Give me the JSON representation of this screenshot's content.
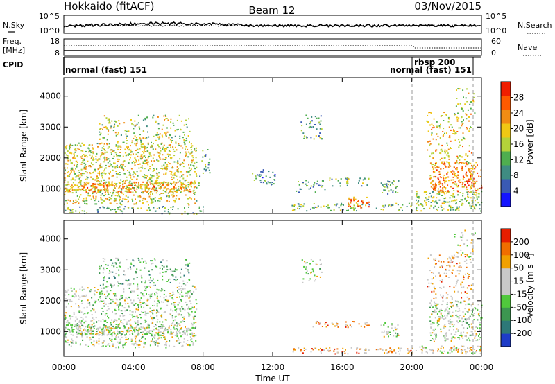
{
  "header": {
    "station": "Hokkaido (fitACF)",
    "beam": "Beam 12",
    "date": "03/Nov/2015"
  },
  "status_panels": {
    "nsky_label": "N.Sky",
    "nsky_ticks": [
      "10^5",
      "10^0"
    ],
    "nsearch_label": "N.Search",
    "nsearch_ticks": [
      "10^5",
      "10^0"
    ],
    "freq_label": "Freq.",
    "freq_unit": "[MHz]",
    "freq_ticks": [
      "18",
      "8"
    ],
    "nave_label": "Nave",
    "nave_ticks": [
      "60",
      "0"
    ],
    "cpid_label": "CPID",
    "cpid_segments": [
      {
        "label": "normal (fast) 151",
        "start_h": 0,
        "end_h": 20.2
      },
      {
        "label": "rbsp 200",
        "start_h": 20.2,
        "end_h": 20.6
      },
      {
        "label": "normal (fast) 151",
        "start_h": 20.6,
        "end_h": 24
      }
    ]
  },
  "colors": {
    "power": [
      "#1414ff",
      "#3a5ab4",
      "#3f8c82",
      "#4fae4f",
      "#b4d23a",
      "#f0c814",
      "#f08c14",
      "#ff5a00",
      "#f01e00"
    ],
    "velocity": [
      "#1e3cc8",
      "#2d7878",
      "#3c9650",
      "#50c83c",
      "#c8c8c8",
      "#c8c8c8",
      "#f0a000",
      "#f06e00",
      "#e61e00"
    ]
  },
  "chart_data": [
    {
      "type": "heatmap",
      "panel": "power",
      "xlabel": "",
      "ylabel": "Slant Range [km]",
      "xlim": [
        0,
        24
      ],
      "ylim": [
        200,
        4600
      ],
      "x_ticks": [
        "00:00",
        "04:00",
        "08:00",
        "12:00",
        "16:00",
        "20:00",
        "00:00"
      ],
      "y_ticks": [
        1000,
        2000,
        3000,
        4000
      ],
      "colorbar_label": "Power [dB]",
      "colorbar_ticks": [
        "28",
        "24",
        "20",
        "16",
        "12",
        "8",
        "4"
      ],
      "colorbar_range": [
        0,
        32
      ],
      "regions": [
        {
          "t0": 0.0,
          "t1": 7.6,
          "r0": 500,
          "r1": 2500,
          "density": 0.55,
          "level": 0.55
        },
        {
          "t0": 2.0,
          "t1": 7.2,
          "r0": 2500,
          "r1": 3400,
          "density": 0.3,
          "level": 0.5
        },
        {
          "t0": 0.0,
          "t1": 7.4,
          "r0": 900,
          "r1": 1250,
          "density": 0.75,
          "level": 0.7
        },
        {
          "t0": 7.6,
          "t1": 8.4,
          "r0": 1100,
          "r1": 2300,
          "density": 0.2,
          "level": 0.35
        },
        {
          "t0": 10.8,
          "t1": 12.2,
          "r0": 1100,
          "r1": 1650,
          "density": 0.4,
          "level": 0.3
        },
        {
          "t0": 13.6,
          "t1": 14.8,
          "r0": 2600,
          "r1": 3400,
          "density": 0.35,
          "level": 0.35
        },
        {
          "t0": 13.3,
          "t1": 15.0,
          "r0": 900,
          "r1": 1300,
          "density": 0.35,
          "level": 0.3
        },
        {
          "t0": 15.2,
          "t1": 17.6,
          "r0": 1100,
          "r1": 1400,
          "density": 0.35,
          "level": 0.4
        },
        {
          "t0": 18.2,
          "t1": 19.2,
          "r0": 850,
          "r1": 1300,
          "density": 0.6,
          "level": 0.35
        },
        {
          "t0": 13.0,
          "t1": 20.0,
          "r0": 300,
          "r1": 550,
          "density": 0.4,
          "level": 0.4
        },
        {
          "t0": 16.3,
          "t1": 17.5,
          "r0": 400,
          "r1": 750,
          "density": 0.6,
          "level": 0.8
        },
        {
          "t0": 20.2,
          "t1": 24.0,
          "r0": 300,
          "r1": 950,
          "density": 0.55,
          "level": 0.45
        },
        {
          "t0": 21.0,
          "t1": 24.0,
          "r0": 900,
          "r1": 1900,
          "density": 0.65,
          "level": 0.75
        },
        {
          "t0": 20.8,
          "t1": 23.4,
          "r0": 1800,
          "r1": 3500,
          "density": 0.3,
          "level": 0.6
        },
        {
          "t0": 22.4,
          "t1": 23.6,
          "r0": 3400,
          "r1": 4300,
          "density": 0.25,
          "level": 0.5
        },
        {
          "t0": 0.0,
          "t1": 8.0,
          "r0": 200,
          "r1": 450,
          "density": 0.35,
          "level": 0.4
        }
      ]
    },
    {
      "type": "heatmap",
      "panel": "velocity",
      "xlabel": "Time UT",
      "ylabel": "Slant Range [km]",
      "xlim": [
        0,
        24
      ],
      "ylim": [
        200,
        4600
      ],
      "x_ticks": [
        "00:00",
        "04:00",
        "08:00",
        "12:00",
        "16:00",
        "20:00",
        "00:00"
      ],
      "y_ticks": [
        1000,
        2000,
        3000,
        4000
      ],
      "colorbar_label": "Velocity [m s⁻¹]",
      "colorbar_ticks": [
        "200",
        "100",
        "50",
        "15",
        "-15",
        "-50",
        "-100",
        "-200"
      ],
      "colorbar_range": [
        -250,
        250
      ],
      "regions": [
        {
          "t0": 0.0,
          "t1": 7.6,
          "r0": 500,
          "r1": 2500,
          "density": 0.45,
          "level": 0.5
        },
        {
          "t0": 2.0,
          "t1": 7.2,
          "r0": 2500,
          "r1": 3400,
          "density": 0.3,
          "level": 0.35
        },
        {
          "t0": 0.0,
          "t1": 7.4,
          "r0": 900,
          "r1": 1250,
          "density": 0.75,
          "level": 0.5
        },
        {
          "t0": 13.6,
          "t1": 14.8,
          "r0": 2600,
          "r1": 3400,
          "density": 0.3,
          "level": 0.5
        },
        {
          "t0": 14.2,
          "t1": 17.6,
          "r0": 1150,
          "r1": 1350,
          "density": 0.45,
          "level": 0.7
        },
        {
          "t0": 18.2,
          "t1": 19.2,
          "r0": 850,
          "r1": 1300,
          "density": 0.6,
          "level": 0.5
        },
        {
          "t0": 13.0,
          "t1": 20.0,
          "r0": 300,
          "r1": 500,
          "density": 0.55,
          "level": 0.72
        },
        {
          "t0": 20.2,
          "t1": 24.0,
          "r0": 300,
          "r1": 550,
          "density": 0.7,
          "level": 0.6
        },
        {
          "t0": 21.0,
          "t1": 24.0,
          "r0": 700,
          "r1": 2000,
          "density": 0.55,
          "level": 0.5
        },
        {
          "t0": 20.8,
          "t1": 23.4,
          "r0": 2000,
          "r1": 3500,
          "density": 0.3,
          "level": 0.7
        },
        {
          "t0": 22.4,
          "t1": 23.6,
          "r0": 3400,
          "r1": 4300,
          "density": 0.25,
          "level": 0.55
        }
      ]
    }
  ]
}
